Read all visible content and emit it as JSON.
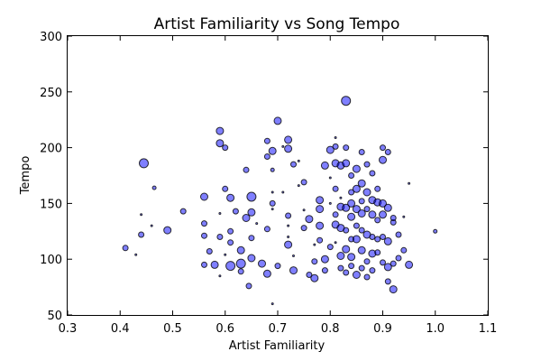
{
  "chart_data": {
    "type": "scatter",
    "title": "Artist Familiarity vs Song Tempo",
    "xlabel": "Artist Familiarity",
    "ylabel": "Tempo",
    "xlim": [
      0.3,
      1.1
    ],
    "ylim": [
      50,
      300
    ],
    "xticks": [
      "0.3",
      "0.4",
      "0.5",
      "0.6",
      "0.7",
      "0.8",
      "0.9",
      "1.0",
      "1.1"
    ],
    "yticks": [
      "50",
      "100",
      "150",
      "200",
      "250",
      "300"
    ],
    "grid": false,
    "marker_color": "#0000ff",
    "marker_edge_color": "#000000",
    "marker_alpha": 0.5,
    "series": [
      {
        "points": [
          [
            0.41,
            110,
            3
          ],
          [
            0.43,
            104,
            1
          ],
          [
            0.44,
            122,
            3
          ],
          [
            0.44,
            140,
            1
          ],
          [
            0.445,
            186,
            5
          ],
          [
            0.46,
            130,
            1
          ],
          [
            0.465,
            164,
            2
          ],
          [
            0.49,
            126,
            4
          ],
          [
            0.52,
            143,
            3
          ],
          [
            0.56,
            95,
            3
          ],
          [
            0.56,
            121,
            3
          ],
          [
            0.56,
            132,
            3
          ],
          [
            0.56,
            156,
            4
          ],
          [
            0.57,
            107,
            3
          ],
          [
            0.58,
            95,
            4
          ],
          [
            0.59,
            215,
            4
          ],
          [
            0.59,
            204,
            4
          ],
          [
            0.59,
            120,
            3
          ],
          [
            0.59,
            85,
            1
          ],
          [
            0.59,
            141,
            1
          ],
          [
            0.6,
            200,
            3
          ],
          [
            0.6,
            163,
            3
          ],
          [
            0.6,
            104,
            1
          ],
          [
            0.61,
            155,
            4
          ],
          [
            0.61,
            125,
            3
          ],
          [
            0.61,
            115,
            3
          ],
          [
            0.61,
            94,
            5
          ],
          [
            0.62,
            143,
            3
          ],
          [
            0.63,
            108,
            4
          ],
          [
            0.63,
            96,
            5
          ],
          [
            0.63,
            89,
            3
          ],
          [
            0.64,
            180,
            3
          ],
          [
            0.64,
            137,
            4
          ],
          [
            0.645,
            76,
            3
          ],
          [
            0.65,
            156,
            5
          ],
          [
            0.65,
            142,
            4
          ],
          [
            0.65,
            119,
            3
          ],
          [
            0.65,
            101,
            4
          ],
          [
            0.66,
            132,
            1
          ],
          [
            0.67,
            96,
            4
          ],
          [
            0.68,
            206,
            3
          ],
          [
            0.68,
            192,
            3
          ],
          [
            0.68,
            127,
            3
          ],
          [
            0.68,
            87,
            4
          ],
          [
            0.69,
            197,
            4
          ],
          [
            0.69,
            180,
            2
          ],
          [
            0.69,
            160,
            1
          ],
          [
            0.69,
            150,
            3
          ],
          [
            0.69,
            145,
            1
          ],
          [
            0.69,
            60,
            1
          ],
          [
            0.7,
            224,
            4
          ],
          [
            0.7,
            94,
            3
          ],
          [
            0.71,
            201,
            1
          ],
          [
            0.71,
            160,
            1
          ],
          [
            0.72,
            207,
            4
          ],
          [
            0.72,
            199,
            4
          ],
          [
            0.72,
            139,
            3
          ],
          [
            0.72,
            130,
            1
          ],
          [
            0.72,
            120,
            1
          ],
          [
            0.72,
            113,
            4
          ],
          [
            0.73,
            185,
            3
          ],
          [
            0.73,
            90,
            4
          ],
          [
            0.73,
            103,
            1
          ],
          [
            0.74,
            188,
            1
          ],
          [
            0.74,
            166,
            1
          ],
          [
            0.75,
            169,
            3
          ],
          [
            0.75,
            144,
            1
          ],
          [
            0.75,
            128,
            3
          ],
          [
            0.76,
            136,
            4
          ],
          [
            0.76,
            86,
            3
          ],
          [
            0.77,
            83,
            4
          ],
          [
            0.77,
            98,
            3
          ],
          [
            0.77,
            113,
            1
          ],
          [
            0.78,
            153,
            4
          ],
          [
            0.78,
            145,
            4
          ],
          [
            0.78,
            130,
            4
          ],
          [
            0.78,
            117,
            3
          ],
          [
            0.79,
            184,
            4
          ],
          [
            0.79,
            100,
            4
          ],
          [
            0.79,
            90,
            3
          ],
          [
            0.8,
            198,
            4
          ],
          [
            0.8,
            173,
            1
          ],
          [
            0.8,
            150,
            1
          ],
          [
            0.8,
            111,
            3
          ],
          [
            0.81,
            209,
            1
          ],
          [
            0.81,
            201,
            3
          ],
          [
            0.81,
            186,
            4
          ],
          [
            0.81,
            163,
            3
          ],
          [
            0.81,
            140,
            3
          ],
          [
            0.81,
            131,
            4
          ],
          [
            0.81,
            115,
            1
          ],
          [
            0.82,
            184,
            4
          ],
          [
            0.82,
            155,
            1
          ],
          [
            0.82,
            147,
            4
          ],
          [
            0.82,
            128,
            4
          ],
          [
            0.82,
            103,
            4
          ],
          [
            0.82,
            92,
            3
          ],
          [
            0.83,
            242,
            5
          ],
          [
            0.83,
            200,
            3
          ],
          [
            0.83,
            186,
            4
          ],
          [
            0.83,
            146,
            4
          ],
          [
            0.83,
            126,
            3
          ],
          [
            0.83,
            109,
            4
          ],
          [
            0.83,
            88,
            3
          ],
          [
            0.84,
            175,
            3
          ],
          [
            0.84,
            160,
            3
          ],
          [
            0.84,
            150,
            4
          ],
          [
            0.84,
            138,
            4
          ],
          [
            0.84,
            118,
            3
          ],
          [
            0.84,
            102,
            4
          ],
          [
            0.84,
            94,
            3
          ],
          [
            0.85,
            181,
            4
          ],
          [
            0.85,
            163,
            4
          ],
          [
            0.85,
            145,
            4
          ],
          [
            0.85,
            130,
            3
          ],
          [
            0.85,
            118,
            4
          ],
          [
            0.85,
            86,
            4
          ],
          [
            0.86,
            196,
            3
          ],
          [
            0.86,
            168,
            4
          ],
          [
            0.86,
            152,
            3
          ],
          [
            0.86,
            141,
            4
          ],
          [
            0.86,
            126,
            3
          ],
          [
            0.86,
            108,
            4
          ],
          [
            0.86,
            92,
            3
          ],
          [
            0.87,
            185,
            3
          ],
          [
            0.87,
            160,
            4
          ],
          [
            0.87,
            145,
            3
          ],
          [
            0.87,
            122,
            4
          ],
          [
            0.87,
            98,
            3
          ],
          [
            0.87,
            84,
            3
          ],
          [
            0.88,
            177,
            3
          ],
          [
            0.88,
            153,
            4
          ],
          [
            0.88,
            140,
            4
          ],
          [
            0.88,
            120,
            3
          ],
          [
            0.88,
            105,
            4
          ],
          [
            0.88,
            90,
            3
          ],
          [
            0.89,
            163,
            3
          ],
          [
            0.89,
            151,
            4
          ],
          [
            0.89,
            135,
            3
          ],
          [
            0.89,
            118,
            3
          ],
          [
            0.89,
            106,
            3
          ],
          [
            0.9,
            200,
            3
          ],
          [
            0.9,
            189,
            4
          ],
          [
            0.9,
            150,
            4
          ],
          [
            0.9,
            140,
            4
          ],
          [
            0.9,
            120,
            3
          ],
          [
            0.9,
            97,
            3
          ],
          [
            0.91,
            196,
            3
          ],
          [
            0.91,
            146,
            4
          ],
          [
            0.91,
            116,
            4
          ],
          [
            0.91,
            93,
            4
          ],
          [
            0.91,
            80,
            3
          ],
          [
            0.92,
            73,
            4
          ],
          [
            0.92,
            133,
            3
          ],
          [
            0.92,
            96,
            3
          ],
          [
            0.92,
            137,
            3
          ],
          [
            0.93,
            122,
            3
          ],
          [
            0.93,
            101,
            3
          ],
          [
            0.94,
            138,
            1
          ],
          [
            0.94,
            108,
            3
          ],
          [
            0.95,
            95,
            4
          ],
          [
            0.95,
            168,
            1
          ],
          [
            1.0,
            125,
            2
          ]
        ]
      }
    ]
  }
}
